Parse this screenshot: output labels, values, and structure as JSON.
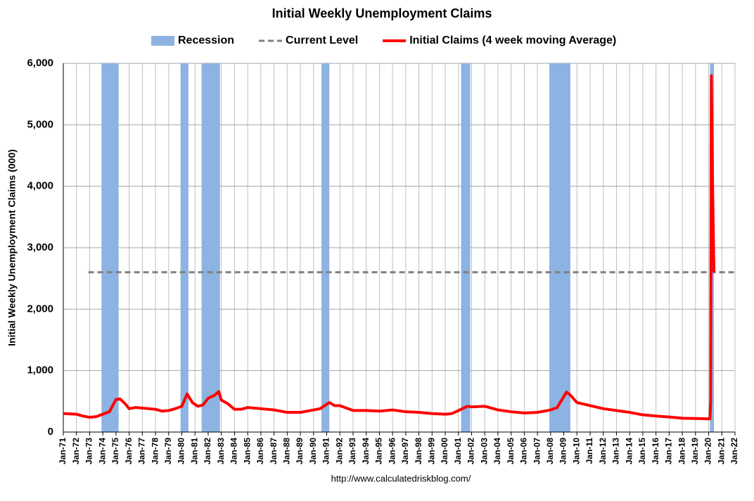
{
  "chart_data": {
    "type": "line",
    "title": "Initial Weekly Unemployment Claims",
    "y_label": "Initial Weekly Unemployment Claims (000)",
    "source": "http://www.calculatedriskblog.com/",
    "recessions": {
      "name": "Recession",
      "color": "#8db3e2",
      "ranges": [
        [
          1973.9,
          1975.2
        ],
        [
          1979.9,
          1980.5
        ],
        [
          1981.5,
          1982.9
        ],
        [
          1990.6,
          1991.2
        ],
        [
          2001.2,
          2001.9
        ],
        [
          2007.9,
          2009.5
        ],
        [
          2020.1,
          2020.4
        ]
      ]
    },
    "series": [
      {
        "name": "Current Level",
        "color": "#7f7f7f",
        "style": "dashed",
        "x": [
          1972.9,
          2022
        ],
        "values": [
          2600,
          2600
        ]
      },
      {
        "name": "Initial Claims (4 week moving Average)",
        "color": "#ff0000",
        "style": "solid",
        "x": [
          1971,
          1972,
          1972.5,
          1973,
          1973.5,
          1974,
          1974.5,
          1975,
          1975.3,
          1975.7,
          1976,
          1976.5,
          1977,
          1977.5,
          1978,
          1978.5,
          1979,
          1979.5,
          1980,
          1980.4,
          1980.8,
          1981.2,
          1981.6,
          1982,
          1982.5,
          1982.8,
          1983,
          1983.5,
          1984,
          1984.5,
          1985,
          1986,
          1987,
          1988,
          1989,
          1990,
          1990.5,
          1991.2,
          1991.6,
          1992,
          1993,
          1994,
          1995,
          1996,
          1997,
          1998,
          1999,
          2000,
          2000.5,
          2001,
          2001.7,
          2002,
          2003,
          2004,
          2005,
          2006,
          2007,
          2008,
          2008.5,
          2009.2,
          2009.5,
          2010,
          2011,
          2012,
          2013,
          2014,
          2015,
          2016,
          2017,
          2018,
          2019,
          2020.1,
          2020.15,
          2020.2,
          2020.3,
          2020.4
        ],
        "values": [
          300,
          290,
          260,
          240,
          250,
          290,
          330,
          530,
          540,
          460,
          380,
          400,
          390,
          380,
          370,
          340,
          350,
          380,
          420,
          620,
          480,
          420,
          440,
          550,
          600,
          660,
          520,
          460,
          370,
          370,
          400,
          380,
          360,
          320,
          320,
          360,
          380,
          480,
          430,
          430,
          350,
          350,
          340,
          360,
          330,
          320,
          300,
          290,
          300,
          350,
          420,
          410,
          420,
          360,
          330,
          310,
          320,
          360,
          400,
          650,
          600,
          480,
          430,
          380,
          350,
          320,
          280,
          260,
          245,
          225,
          220,
          215,
          500,
          5800,
          4000,
          2600
        ]
      }
    ],
    "xlim": [
      1971,
      2022
    ],
    "xticks": [
      {
        "value": 1971,
        "label": "Jan-71"
      },
      {
        "value": 1972,
        "label": "Jan-72"
      },
      {
        "value": 1973,
        "label": "Jan-73"
      },
      {
        "value": 1974,
        "label": "Jan-74"
      },
      {
        "value": 1975,
        "label": "Jan-75"
      },
      {
        "value": 1976,
        "label": "Jan-76"
      },
      {
        "value": 1977,
        "label": "Jan-77"
      },
      {
        "value": 1978,
        "label": "Jan-78"
      },
      {
        "value": 1979,
        "label": "Jan-79"
      },
      {
        "value": 1980,
        "label": "Jan-80"
      },
      {
        "value": 1981,
        "label": "Jan-81"
      },
      {
        "value": 1982,
        "label": "Jan-82"
      },
      {
        "value": 1983,
        "label": "Jan-83"
      },
      {
        "value": 1984,
        "label": "Jan-84"
      },
      {
        "value": 1985,
        "label": "Jan-85"
      },
      {
        "value": 1986,
        "label": "Jan-86"
      },
      {
        "value": 1987,
        "label": "Jan-87"
      },
      {
        "value": 1988,
        "label": "Jan-88"
      },
      {
        "value": 1989,
        "label": "Jan-89"
      },
      {
        "value": 1990,
        "label": "Jan-90"
      },
      {
        "value": 1991,
        "label": "Jan-91"
      },
      {
        "value": 1992,
        "label": "Jan-92"
      },
      {
        "value": 1993,
        "label": "Jan-93"
      },
      {
        "value": 1994,
        "label": "Jan-94"
      },
      {
        "value": 1995,
        "label": "Jan-95"
      },
      {
        "value": 1996,
        "label": "Jan-96"
      },
      {
        "value": 1997,
        "label": "Jan-97"
      },
      {
        "value": 1998,
        "label": "Jan-98"
      },
      {
        "value": 1999,
        "label": "Jan-99"
      },
      {
        "value": 2000,
        "label": "Jan-00"
      },
      {
        "value": 2001,
        "label": "Jan-01"
      },
      {
        "value": 2002,
        "label": "Jan-02"
      },
      {
        "value": 2003,
        "label": "Jan-03"
      },
      {
        "value": 2004,
        "label": "Jan-04"
      },
      {
        "value": 2005,
        "label": "Jan-05"
      },
      {
        "value": 2006,
        "label": "Jan-06"
      },
      {
        "value": 2007,
        "label": "Jan-07"
      },
      {
        "value": 2008,
        "label": "Jan-08"
      },
      {
        "value": 2009,
        "label": "Jan-09"
      },
      {
        "value": 2010,
        "label": "Jan-10"
      },
      {
        "value": 2011,
        "label": "Jan-11"
      },
      {
        "value": 2012,
        "label": "Jan-12"
      },
      {
        "value": 2013,
        "label": "Jan-13"
      },
      {
        "value": 2014,
        "label": "Jan-14"
      },
      {
        "value": 2015,
        "label": "Jan-15"
      },
      {
        "value": 2016,
        "label": "Jan-16"
      },
      {
        "value": 2017,
        "label": "Jan-17"
      },
      {
        "value": 2018,
        "label": "Jan-18"
      },
      {
        "value": 2019,
        "label": "Jan-19"
      },
      {
        "value": 2020,
        "label": "Jan-20"
      },
      {
        "value": 2021,
        "label": "Jan-21"
      },
      {
        "value": 2022,
        "label": "Jan-22"
      }
    ],
    "ylim": [
      0,
      6000
    ],
    "yticks": [
      0,
      {
        "value": 1000,
        "label": "1,000"
      },
      {
        "value": 2000,
        "label": "2,000"
      },
      {
        "value": 3000,
        "label": "3,000"
      },
      {
        "value": 4000,
        "label": "4,000"
      },
      {
        "value": 5000,
        "label": "5,000"
      },
      {
        "value": 6000,
        "label": "6,000"
      }
    ],
    "grid": true,
    "legend": "top"
  }
}
